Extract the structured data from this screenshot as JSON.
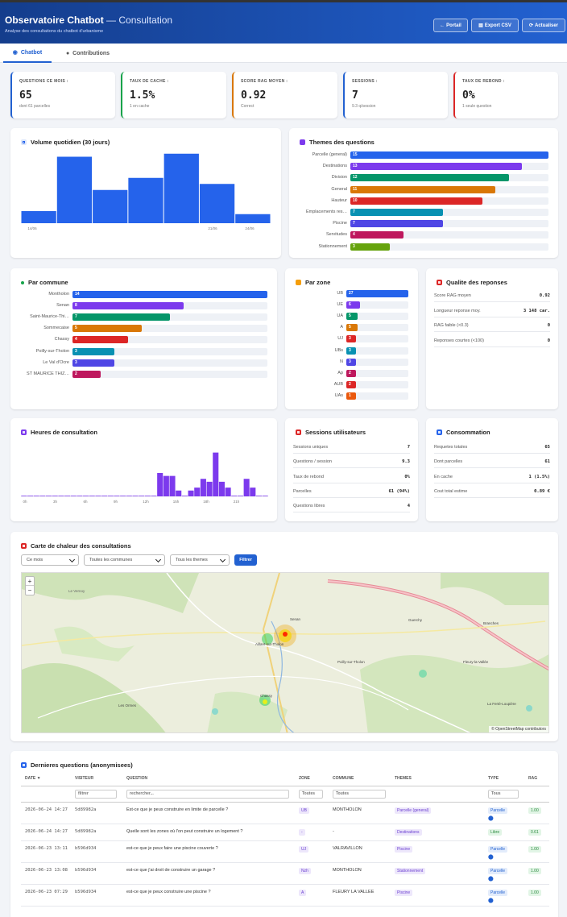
{
  "header": {
    "title": "Observatoire Chatbot",
    "title_suffix": "— Consultation",
    "subtitle": "Analyse des consultations du chatbot d'urbanisme",
    "btn_portal": "Portail",
    "btn_export": "Export CSV",
    "btn_refresh": "Actualiser"
  },
  "tabs": [
    {
      "label": "Chatbot",
      "icon": "robot-icon"
    },
    {
      "label": "Contributions",
      "icon": "comments-icon"
    }
  ],
  "kpis": [
    {
      "label": "QUESTIONS CE MOIS :",
      "value": "65",
      "sub": "dont 61 parcelles",
      "color": "#2261d1"
    },
    {
      "label": "TAUX DE CACHE :",
      "value": "1.5%",
      "sub": "1 en cache",
      "color": "#16a34a"
    },
    {
      "label": "SCORE RAG MOYEN :",
      "value": "0.92",
      "sub": "Correct",
      "color": "#d97706"
    },
    {
      "label": "SESSIONS :",
      "value": "7",
      "sub": "9.3 q/session",
      "color": "#2261d1"
    },
    {
      "label": "TAUX DE REBOND :",
      "value": "0%",
      "sub": "1 seule question",
      "color": "#dc2626"
    }
  ],
  "daily": {
    "title": "Volume quotidien (30 jours)",
    "x_labels": [
      "14/06",
      "21/06",
      "24/06"
    ],
    "color": "#2563eb",
    "chart_data": {
      "type": "bar",
      "values": [
        2,
        11,
        5.5,
        7.5,
        11.5,
        6.5,
        1.5
      ],
      "ylim": [
        0,
        12
      ]
    }
  },
  "themes": {
    "title": "Themes des questions",
    "color": "#7c3aed",
    "max": 15,
    "items": [
      {
        "label": "Parcelle (general)",
        "value": 15,
        "color": "#2563eb"
      },
      {
        "label": "Destinations",
        "value": 13,
        "color": "#7c3aed"
      },
      {
        "label": "Division",
        "value": 12,
        "color": "#059669"
      },
      {
        "label": "General",
        "value": 11,
        "color": "#d97706"
      },
      {
        "label": "Hauteur",
        "value": 10,
        "color": "#dc2626"
      },
      {
        "label": "Emplacements res…",
        "value": 7,
        "color": "#0891b2"
      },
      {
        "label": "Piscine",
        "value": 7,
        "color": "#4f46e5"
      },
      {
        "label": "Servitudes",
        "value": 4,
        "color": "#be185d"
      },
      {
        "label": "Stationnement",
        "value": 3,
        "color": "#65a30d"
      }
    ]
  },
  "communes": {
    "title": "Par commune",
    "color": "#16a34a",
    "max": 14,
    "items": [
      {
        "label": "Montholon",
        "value": 14,
        "color": "#2563eb"
      },
      {
        "label": "Senan",
        "value": 8,
        "color": "#7c3aed"
      },
      {
        "label": "Saint-Maurice-Thi…",
        "value": 7,
        "color": "#059669"
      },
      {
        "label": "Sommecaise",
        "value": 5,
        "color": "#d97706"
      },
      {
        "label": "Chassy",
        "value": 4,
        "color": "#dc2626"
      },
      {
        "label": "Poilly-sur-Tholon",
        "value": 3,
        "color": "#0891b2"
      },
      {
        "label": "Le Val d'Ocre",
        "value": 3,
        "color": "#4f46e5"
      },
      {
        "label": "ST MAURICE THIZ…",
        "value": 2,
        "color": "#be185d"
      }
    ]
  },
  "zones": {
    "title": "Par zone",
    "color": "#f59e0b",
    "max": 27,
    "items": [
      {
        "label": "UB",
        "value": 27,
        "color": "#2563eb"
      },
      {
        "label": "UE",
        "value": 6,
        "color": "#7c3aed"
      },
      {
        "label": "UA",
        "value": 5,
        "color": "#059669"
      },
      {
        "label": "A",
        "value": 5,
        "color": "#d97706"
      },
      {
        "label": "UJ",
        "value": 3,
        "color": "#dc2626"
      },
      {
        "label": "UBs",
        "value": 3,
        "color": "#0891b2"
      },
      {
        "label": "N",
        "value": 3,
        "color": "#4f46e5"
      },
      {
        "label": "Ap",
        "value": 2,
        "color": "#be185d"
      },
      {
        "label": "AUB",
        "value": 2,
        "color": "#dc2626"
      },
      {
        "label": "UAs",
        "value": 1,
        "color": "#ea580c"
      }
    ]
  },
  "quality": {
    "title": "Qualite des reponses",
    "color": "#dc2626",
    "rows": [
      {
        "k": "Score RAG moyen",
        "v": "0.92"
      },
      {
        "k": "Longueur reponse moy.",
        "v": "3 148 car."
      },
      {
        "k": "RAG faible (<0.3)",
        "v": "0"
      },
      {
        "k": "Reponses courtes (<100)",
        "v": "0"
      }
    ]
  },
  "hours": {
    "title": "Heures de consultation",
    "color": "#7c3aed",
    "x_labels": [
      "0h",
      "3h",
      "6h",
      "9h",
      "12h",
      "15h",
      "18h",
      "21h"
    ],
    "chart_data": {
      "type": "bar",
      "values": [
        0,
        0,
        0,
        0,
        0,
        0,
        0,
        0,
        0,
        0,
        0,
        0,
        0,
        0,
        0,
        0,
        0,
        0,
        0,
        0,
        0,
        0,
        8,
        7,
        7,
        2,
        0,
        2,
        3,
        6,
        5,
        15,
        5,
        3,
        0,
        0,
        6,
        3,
        0,
        0
      ],
      "ylim": [
        0,
        16
      ]
    }
  },
  "sessions": {
    "title": "Sessions utilisateurs",
    "color": "#dc2626",
    "rows": [
      {
        "k": "Sessions uniques",
        "v": "7"
      },
      {
        "k": "Questions / session",
        "v": "9.3"
      },
      {
        "k": "Taux de rebond",
        "v": "0%"
      },
      {
        "k": "Parcelles",
        "v": "61 (94%)"
      },
      {
        "k": "Questions libres",
        "v": "4"
      }
    ]
  },
  "consumption": {
    "title": "Consommation",
    "color": "#2563eb",
    "rows": [
      {
        "k": "Requetes totales",
        "v": "65"
      },
      {
        "k": "Dont parcelles",
        "v": "61"
      },
      {
        "k": "En cache",
        "v": "1 (1.5%)"
      },
      {
        "k": "Cout total estime",
        "v": "0.89 €"
      }
    ]
  },
  "heatmap": {
    "title": "Carte de chaleur des consultations",
    "color": "#dc2626",
    "filter_month": "Ce mois",
    "filter_commune": "Toutes les communes",
    "filter_theme": "Tous les themes",
    "filter_btn": "Filtrer",
    "attribution": "© OpenStreetMap contributors",
    "zoom_in": "+",
    "zoom_out": "−",
    "places": [
      {
        "name": "Le Vernoy"
      },
      {
        "name": "Aillant-sur-Tholon"
      },
      {
        "name": "Senan"
      },
      {
        "name": "Poilly-sur-Tholon"
      },
      {
        "name": "Chassy"
      },
      {
        "name": "Les Ormes"
      },
      {
        "name": "Guerchy"
      },
      {
        "name": "Fleury-la-Vallée"
      },
      {
        "name": "Branches"
      },
      {
        "name": "La Ferté-Loupière"
      }
    ]
  },
  "recent": {
    "title": "Dernieres questions (anonymisees)",
    "color": "#2563eb",
    "cols": [
      "DATE ▼",
      "VISITEUR",
      "QUESTION",
      "ZONE",
      "COMMUNE",
      "THEMES",
      "TYPE",
      "RAG"
    ],
    "filter_visitor": "filtrer",
    "filter_question": "rechercher...",
    "filter_zone": "Toutes",
    "filter_commune": "Toutes",
    "filter_type": "Tous",
    "rows": [
      {
        "date": "2026-06-24 14:27",
        "visitor": "5d89982a",
        "question": "Est-ce que je peux construire en limite de parcelle ?",
        "zone": "UB",
        "commune": "MONTHOLON",
        "theme": "Parcelle (general)",
        "type": "Parcelle",
        "rag": "1.00"
      },
      {
        "date": "2026-06-24 14:27",
        "visitor": "5d89982a",
        "question": "Quelle sont les zones où l'on peut construire un logement ?",
        "zone": "-",
        "commune": "-",
        "theme": "Destinations",
        "type": "Libre",
        "rag": "0.61"
      },
      {
        "date": "2026-06-23 13:11",
        "visitor": "b596d934",
        "question": "est-ce que je peux faire une piscine couverte ?",
        "zone": "UJ",
        "commune": "VALRAVILLON",
        "theme": "Piscine",
        "type": "Parcelle",
        "rag": "1.00"
      },
      {
        "date": "2026-06-23 13:08",
        "visitor": "b596d934",
        "question": "est-ce que j'ai droit de construire un garage ?",
        "zone": "Nzh",
        "commune": "MONTHOLON",
        "theme": "Stationnement",
        "type": "Parcelle",
        "rag": "1.00"
      },
      {
        "date": "2026-06-23 07:29",
        "visitor": "b596d934",
        "question": "est-ce que je peux construire une piscine ?",
        "zone": "A",
        "commune": "FLEURY LA VALLEE",
        "theme": "Piscine",
        "type": "Parcelle",
        "rag": "1.00"
      }
    ]
  }
}
